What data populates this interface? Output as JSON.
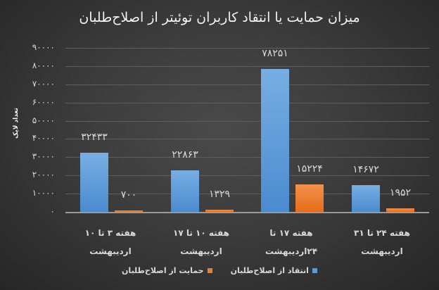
{
  "chart_data": {
    "type": "bar",
    "title": "میزان حمایت یا انتقاد کاربران توئیتر از اصلاح‌طلبان",
    "xlabel": "",
    "ylabel": "تعداد لایک",
    "ylim": [
      0,
      90000
    ],
    "yticks": [
      "۰",
      "۱۰۰۰۰",
      "۲۰۰۰۰",
      "۳۰۰۰۰",
      "۴۰۰۰۰",
      "۵۰۰۰۰",
      "۶۰۰۰۰",
      "۷۰۰۰۰",
      "۸۰۰۰۰",
      "۹۰۰۰۰"
    ],
    "grid": true,
    "legend_position": "bottom",
    "categories": [
      "هفته ۳ تا ۱۰ اردیبهشت",
      "هفته ۱۰ تا ۱۷ اردیبهشت",
      "هفته ۱۷ تا ۲۴اردیبهشت",
      "هفته ۲۴ تا ۳۱ اردیبهشت"
    ],
    "series": [
      {
        "name": "انتقاد از اصلاح‌طلبان",
        "color": "#5b9bd5",
        "values": [
          32433,
          22863,
          78251,
          14672
        ],
        "labels": [
          "۳۲۴۳۳",
          "۲۲۸۶۳",
          "۷۸۲۵۱",
          "۱۴۶۷۲"
        ]
      },
      {
        "name": "حمایت از اصلاح‌طلبان",
        "color": "#ed7d31",
        "values": [
          700,
          1329,
          15224,
          1952
        ],
        "labels": [
          "۷۰۰",
          "۱۳۲۹",
          "۱۵۲۲۴",
          "۱۹۵۲"
        ]
      }
    ]
  },
  "xlabels": [
    [
      "هفته ۳ تا ۱۰ اردیبهشت"
    ],
    [
      "هفته ۱۰ تا ۱۷",
      "اردیبهشت"
    ],
    [
      "هفته ۱۷ تا",
      "۲۴اردیبهشت"
    ],
    [
      "هفته ۲۴ تا ۳۱",
      "اردیبهشت"
    ]
  ]
}
